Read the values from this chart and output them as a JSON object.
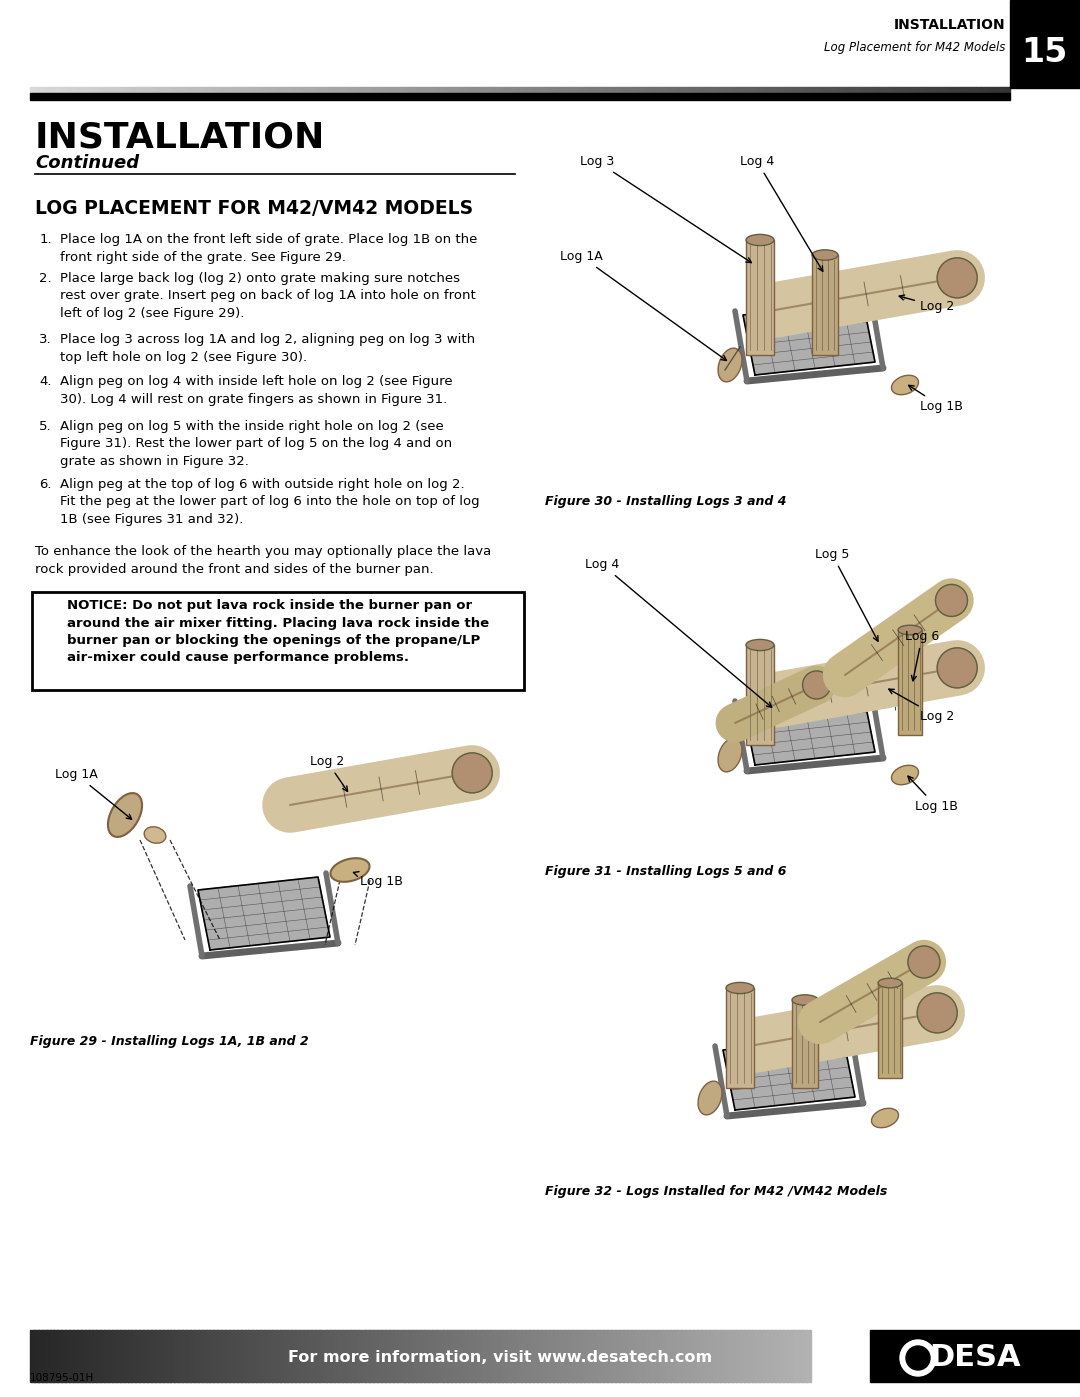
{
  "page_bg": "#ffffff",
  "header_text_line1": "INSTALLATION",
  "header_text_line2": "Log Placement for M42 Models",
  "header_page_num": "15",
  "title_main": "INSTALLATION",
  "title_sub": "Continued",
  "section_title": "LOG PLACEMENT FOR M42/VM42 MODELS",
  "inst1": "Place log 1A on the front left side of grate. Place log 1B on the\nfront right side of the grate. See Figure 29.",
  "inst2": "Place large back log (log 2) onto grate making sure notches\nrest over grate. Insert peg on back of log 1A into hole on front\nleft of log 2 (see Figure 29).",
  "inst3": "Place log 3 across log 1A and log 2, aligning peg on log 3 with\ntop left hole on log 2 (see Figure 30).",
  "inst4": "Align peg on log 4 with inside left hole on log 2 (see Figure\n30). Log 4 will rest on grate fingers as shown in Figure 31.",
  "inst5": "Align peg on log 5 with the inside right hole on log 2 (see\nFigure 31). Rest the lower part of log 5 on the log 4 and on\ngrate as shown in Figure 32.",
  "inst6": "Align peg at the top of log 6 with outside right hole on log 2.\nFit the peg at the lower part of log 6 into the hole on top of log\n1B (see Figures 31 and 32).",
  "para_after": "To enhance the look of the hearth you may optionally place the lava\nrock provided around the front and sides of the burner pan.",
  "notice_bold": "NOTICE: Do not put lava rock inside the burner pan or\naround the air mixer fitting. Placing lava rock inside the\nburner pan or blocking the openings of the propane/LP\nair-mixer could cause performance problems.",
  "fig29_caption": "Figure 29 - Installing Logs 1A, 1B and 2",
  "fig30_caption": "Figure 30 - Installing Logs 3 and 4",
  "fig31_caption": "Figure 31 - Installing Logs 5 and 6",
  "fig32_caption": "Figure 32 - Logs Installed for M42 /VM42 Models",
  "footer_text": "For more information, visit www.desatech.com",
  "footer_model": "DESA",
  "footer_code": "108795-01H"
}
